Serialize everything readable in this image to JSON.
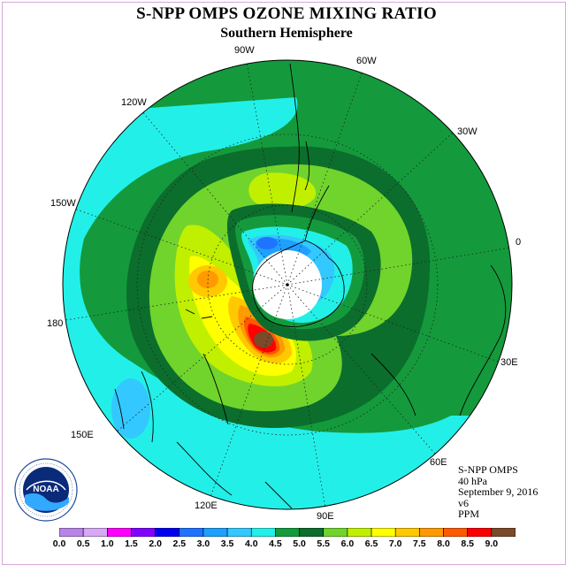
{
  "title": "S-NPP OMPS OZONE MIXING RATIO",
  "subtitle": "Southern Hemisphere",
  "longitude_labels": [
    {
      "key": "90w",
      "text": "90W"
    },
    {
      "key": "60w",
      "text": "60W"
    },
    {
      "key": "30w",
      "text": "30W"
    },
    {
      "key": "120w",
      "text": "120W"
    },
    {
      "key": "150w",
      "text": "150W"
    },
    {
      "key": "0",
      "text": "0"
    },
    {
      "key": "180",
      "text": "180"
    },
    {
      "key": "30e",
      "text": "30E"
    },
    {
      "key": "150e",
      "text": "150E"
    },
    {
      "key": "60e",
      "text": "60E"
    },
    {
      "key": "120e",
      "text": "120E"
    },
    {
      "key": "90e",
      "text": "90E"
    }
  ],
  "info": {
    "instrument": "S-NPP OMPS",
    "level": "40 hPa",
    "date": "September 9, 2016",
    "version": "v6",
    "units": "PPM"
  },
  "colorbar": {
    "ticks": [
      "0.0",
      "0.5",
      "1.0",
      "1.5",
      "2.0",
      "2.5",
      "3.0",
      "3.5",
      "4.0",
      "4.5",
      "5.0",
      "5.5",
      "6.0",
      "6.5",
      "7.0",
      "7.5",
      "8.0",
      "8.5",
      "9.0"
    ],
    "colors": [
      "#b784e8",
      "#d7a8f5",
      "#ff00ff",
      "#8000ff",
      "#0000f0",
      "#1e74ff",
      "#1ea0ff",
      "#33c8ff",
      "#22f0e8",
      "#149a3c",
      "#0b6e2c",
      "#70d42c",
      "#c0f000",
      "#ffff00",
      "#ffc800",
      "#ff9a00",
      "#ff5a00",
      "#ff0000",
      "#7a4a2a"
    ]
  },
  "logo": {
    "text": "NOAA"
  }
}
